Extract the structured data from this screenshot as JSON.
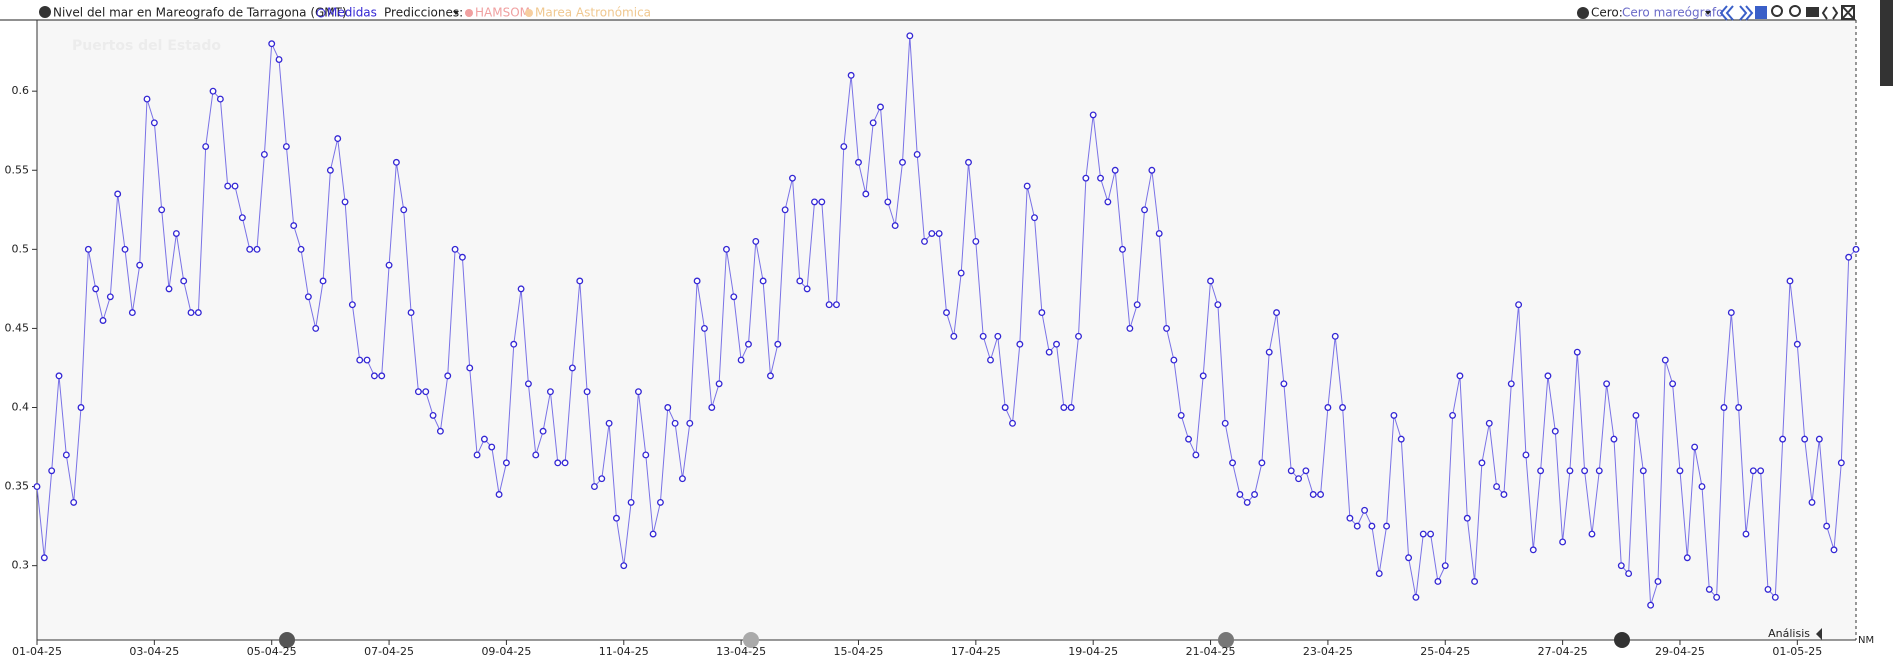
{
  "chart_data": {
    "type": "line",
    "title": "Nivel del mar en Mareografo de Tarragona (GMT)",
    "predictions_label": "Predicciones:",
    "predictions": [
      "HAMSOM",
      "Marea Astronómica"
    ],
    "zero_label": "Cero:",
    "zero_value": "Cero mareógrafo",
    "analysis_label": "Análisis",
    "mode": "NM",
    "watermark": "Puertos del Estado",
    "xlim": [
      0,
      31
    ],
    "xticks": [
      {
        "value": 0,
        "label": "01-04-25"
      },
      {
        "value": 2,
        "label": "03-04-25"
      },
      {
        "value": 4,
        "label": "05-04-25"
      },
      {
        "value": 6,
        "label": "07-04-25"
      },
      {
        "value": 8,
        "label": "09-04-25"
      },
      {
        "value": 10,
        "label": "11-04-25"
      },
      {
        "value": 12,
        "label": "13-04-25"
      },
      {
        "value": 14,
        "label": "15-04-25"
      },
      {
        "value": 16,
        "label": "17-04-25"
      },
      {
        "value": 18,
        "label": "19-04-25"
      },
      {
        "value": 20,
        "label": "21-04-25"
      },
      {
        "value": 22,
        "label": "23-04-25"
      },
      {
        "value": 24,
        "label": "25-04-25"
      },
      {
        "value": 26,
        "label": "27-04-25"
      },
      {
        "value": 28,
        "label": "29-04-25"
      },
      {
        "value": 30,
        "label": "01-05-25"
      }
    ],
    "ylim": [
      0.253,
      0.645
    ],
    "yticks": [
      0.3,
      0.35,
      0.4,
      0.45,
      0.5,
      0.55,
      0.6
    ],
    "series": [
      {
        "name": "Medidas",
        "color": "#3326d4",
        "line_color": "#7a72e6",
        "x": [
          0,
          0.125,
          0.25,
          0.375,
          0.5,
          0.625,
          0.75,
          0.875,
          1,
          1.125,
          1.25,
          1.375,
          1.5,
          1.625,
          1.75,
          1.875,
          2,
          2.125,
          2.25,
          2.375,
          2.5,
          2.625,
          2.75,
          2.875,
          3,
          3.125,
          3.25,
          3.375,
          3.5,
          3.625,
          3.75,
          3.875,
          4,
          4.125,
          4.25,
          4.375,
          4.5,
          4.625,
          4.75,
          4.875,
          5,
          5.125,
          5.25,
          5.375,
          5.5,
          5.625,
          5.75,
          5.875,
          6,
          6.125,
          6.25,
          6.375,
          6.5,
          6.625,
          6.75,
          6.875,
          7,
          7.125,
          7.25,
          7.375,
          7.5,
          7.625,
          7.75,
          7.875,
          8,
          8.125,
          8.25,
          8.375,
          8.5,
          8.625,
          8.75,
          8.875,
          9,
          9.125,
          9.25,
          9.375,
          9.5,
          9.625,
          9.75,
          9.875,
          10,
          10.125,
          10.25,
          10.375,
          10.5,
          10.625,
          10.75,
          10.875,
          11,
          11.125,
          11.25,
          11.375,
          11.5,
          11.625,
          11.75,
          11.875,
          12,
          12.125,
          12.25,
          12.375,
          12.5,
          12.625,
          12.75,
          12.875,
          13,
          13.125,
          13.25,
          13.375,
          13.5,
          13.625,
          13.75,
          13.875,
          14,
          14.125,
          14.25,
          14.375,
          14.5,
          14.625,
          14.75,
          14.875,
          15,
          15.125,
          15.25,
          15.375,
          15.5,
          15.625,
          15.75,
          15.875,
          16,
          16.125,
          16.25,
          16.375,
          16.5,
          16.625,
          16.75,
          16.875,
          17,
          17.125,
          17.25,
          17.375,
          17.5,
          17.625,
          17.75,
          17.875,
          18,
          18.125,
          18.25,
          18.375,
          18.5,
          18.625,
          18.75,
          18.875,
          19,
          19.125,
          19.25,
          19.375,
          19.5,
          19.625,
          19.75,
          19.875,
          20,
          20.125,
          20.25,
          20.375,
          20.5,
          20.625,
          20.75,
          20.875,
          21,
          21.125,
          21.25,
          21.375,
          21.5,
          21.625,
          21.75,
          21.875,
          22,
          22.125,
          22.25,
          22.375,
          22.5,
          22.625,
          22.75,
          22.875,
          23,
          23.125,
          23.25,
          23.375,
          23.5,
          23.625,
          23.75,
          23.875,
          24,
          24.125,
          24.25,
          24.375,
          24.5,
          24.625,
          24.75,
          24.875,
          25,
          25.125,
          25.25,
          25.375,
          25.5,
          25.625,
          25.75,
          25.875,
          26,
          26.125,
          26.25,
          26.375,
          26.5,
          26.625,
          26.75,
          26.875,
          27,
          27.125,
          27.25,
          27.375,
          27.5,
          27.625,
          27.75,
          27.875,
          28,
          28.125,
          28.25,
          28.375,
          28.5,
          28.625,
          28.75,
          28.875,
          29,
          29.125,
          29.25,
          29.375,
          29.5,
          29.625,
          29.75,
          29.875,
          30,
          30.125,
          30.25,
          30.375,
          30.5,
          30.625,
          30.75,
          30.875,
          31
        ],
        "values": [
          0.35,
          0.305,
          0.36,
          0.42,
          0.37,
          0.34,
          0.4,
          0.5,
          0.475,
          0.455,
          0.47,
          0.535,
          0.5,
          0.46,
          0.49,
          0.595,
          0.58,
          0.525,
          0.475,
          0.51,
          0.48,
          0.46,
          0.46,
          0.565,
          0.6,
          0.595,
          0.54,
          0.54,
          0.52,
          0.5,
          0.5,
          0.56,
          0.63,
          0.62,
          0.565,
          0.515,
          0.5,
          0.47,
          0.45,
          0.48,
          0.55,
          0.57,
          0.53,
          0.465,
          0.43,
          0.43,
          0.42,
          0.42,
          0.49,
          0.555,
          0.525,
          0.46,
          0.41,
          0.41,
          0.395,
          0.385,
          0.42,
          0.5,
          0.495,
          0.425,
          0.37,
          0.38,
          0.375,
          0.345,
          0.365,
          0.44,
          0.475,
          0.415,
          0.37,
          0.385,
          0.41,
          0.365,
          0.365,
          0.425,
          0.48,
          0.41,
          0.35,
          0.355,
          0.39,
          0.33,
          0.3,
          0.34,
          0.41,
          0.37,
          0.32,
          0.34,
          0.4,
          0.39,
          0.355,
          0.39,
          0.48,
          0.45,
          0.4,
          0.415,
          0.5,
          0.47,
          0.43,
          0.44,
          0.505,
          0.48,
          0.42,
          0.44,
          0.525,
          0.545,
          0.48,
          0.475,
          0.53,
          0.53,
          0.465,
          0.465,
          0.565,
          0.61,
          0.555,
          0.535,
          0.58,
          0.59,
          0.53,
          0.515,
          0.555,
          0.635,
          0.56,
          0.505,
          0.51,
          0.51,
          0.46,
          0.445,
          0.485,
          0.555,
          0.505,
          0.445,
          0.43,
          0.445,
          0.4,
          0.39,
          0.44,
          0.54,
          0.52,
          0.46,
          0.435,
          0.44,
          0.4,
          0.4,
          0.445,
          0.545,
          0.585,
          0.545,
          0.53,
          0.55,
          0.5,
          0.45,
          0.465,
          0.525,
          0.55,
          0.51,
          0.45,
          0.43,
          0.395,
          0.38,
          0.37,
          0.42,
          0.48,
          0.465,
          0.39,
          0.365,
          0.345,
          0.34,
          0.345,
          0.365,
          0.435,
          0.46,
          0.415,
          0.36,
          0.355,
          0.36,
          0.345,
          0.345,
          0.4,
          0.445,
          0.4,
          0.33,
          0.325,
          0.335,
          0.325,
          0.295,
          0.325,
          0.395,
          0.38,
          0.305,
          0.28,
          0.32,
          0.32,
          0.29,
          0.3,
          0.395,
          0.42,
          0.33,
          0.29,
          0.365,
          0.39,
          0.35,
          0.345,
          0.415,
          0.465,
          0.37,
          0.31,
          0.36,
          0.42,
          0.385,
          0.315,
          0.36,
          0.435,
          0.36,
          0.32,
          0.36,
          0.415,
          0.38,
          0.3,
          0.295,
          0.395,
          0.36,
          0.275,
          0.29,
          0.43,
          0.415,
          0.36,
          0.305,
          0.375,
          0.35,
          0.285,
          0.28,
          0.4,
          0.46,
          0.4,
          0.32,
          0.36,
          0.36,
          0.285,
          0.28,
          0.38,
          0.48,
          0.44,
          0.38,
          0.34,
          0.38,
          0.325,
          0.31,
          0.365,
          0.495,
          0.5
        ]
      }
    ]
  }
}
